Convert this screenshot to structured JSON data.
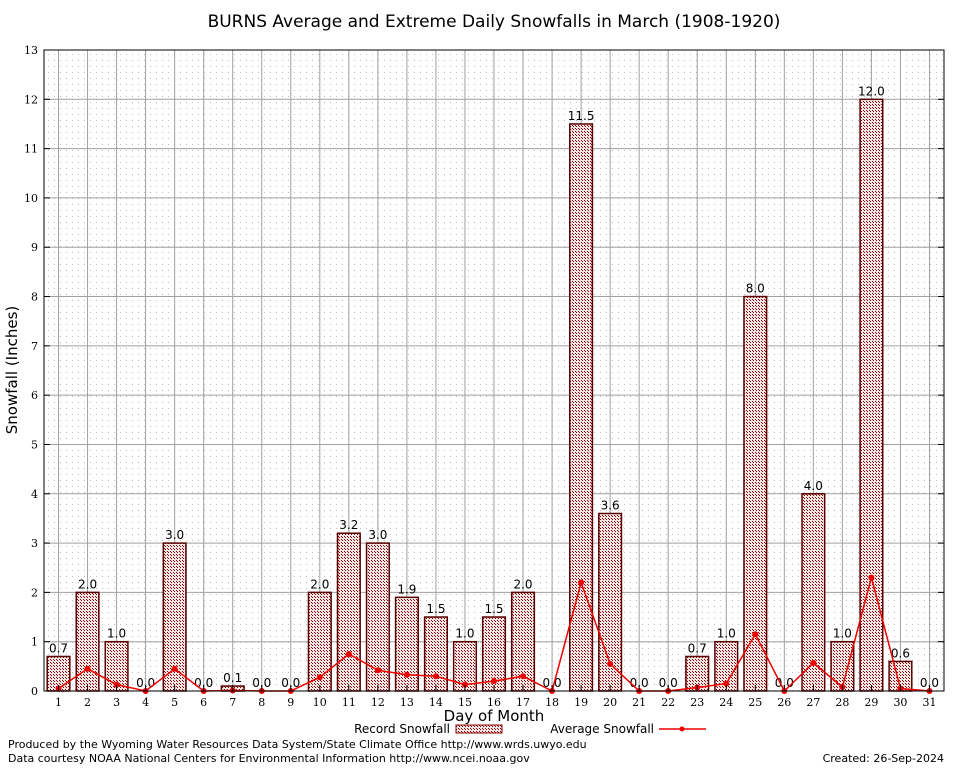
{
  "chart_data": {
    "type": "bar",
    "title": "BURNS Average and Extreme Daily Snowfalls in March (1908-1920)",
    "xlabel": "Day of Month",
    "ylabel": "Snowfall (Inches)",
    "ylim": [
      0,
      13
    ],
    "grid": true,
    "legend_position": "bottom",
    "categories": [
      "1",
      "2",
      "3",
      "4",
      "5",
      "6",
      "7",
      "8",
      "9",
      "10",
      "11",
      "12",
      "13",
      "14",
      "15",
      "16",
      "17",
      "18",
      "19",
      "20",
      "21",
      "22",
      "23",
      "24",
      "25",
      "26",
      "27",
      "28",
      "29",
      "30",
      "31"
    ],
    "y_ticks": [
      "0",
      "1",
      "2",
      "3",
      "4",
      "5",
      "6",
      "7",
      "8",
      "9",
      "10",
      "11",
      "12",
      "13"
    ],
    "series": [
      {
        "name": "Record Snowfall",
        "type": "bar",
        "color": "#8b0000",
        "values": [
          0.7,
          2.0,
          1.0,
          0.0,
          3.0,
          0.0,
          0.1,
          0.0,
          0.0,
          2.0,
          3.2,
          3.0,
          1.9,
          1.5,
          1.0,
          1.5,
          2.0,
          0.0,
          11.5,
          3.6,
          0.0,
          0.0,
          0.7,
          1.0,
          8.0,
          0.0,
          4.0,
          1.0,
          12.0,
          0.6,
          0.0
        ],
        "labels": [
          "0.7",
          "2.0",
          "1.0",
          "0.0",
          "3.0",
          "0.0",
          "0.1",
          "0.0",
          "0.0",
          "2.0",
          "3.2",
          "3.0",
          "1.9",
          "1.5",
          "1.0",
          "1.5",
          "2.0",
          "0.0",
          "11.5",
          "3.6",
          "0.0",
          "0.0",
          "0.7",
          "1.0",
          "8.0",
          "0.0",
          "4.0",
          "1.0",
          "12.0",
          "0.6",
          "0.0"
        ]
      },
      {
        "name": "Average Snowfall",
        "type": "line",
        "color": "#ee0000",
        "values": [
          0.05,
          0.45,
          0.13,
          0.0,
          0.45,
          0.0,
          0.01,
          0.0,
          0.0,
          0.28,
          0.75,
          0.42,
          0.33,
          0.3,
          0.13,
          0.2,
          0.3,
          0.0,
          2.2,
          0.55,
          0.0,
          0.0,
          0.07,
          0.15,
          1.15,
          0.0,
          0.57,
          0.08,
          2.3,
          0.05,
          0.0
        ]
      }
    ]
  },
  "footer": {
    "produced_by": "Produced by the Wyoming Water Resources Data System/State Climate Office http://www.wrds.uwyo.edu",
    "data_courtesy": "Data courtesy NOAA National Centers for Environmental Information http://www.ncei.noaa.gov",
    "created": "Created: 26-Sep-2024"
  }
}
